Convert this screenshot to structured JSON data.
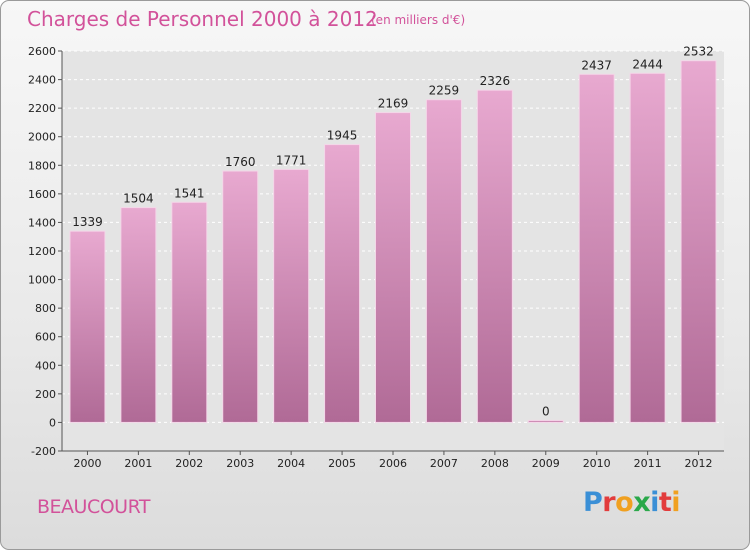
{
  "title": "Charges de Personnel 2000 à 2012",
  "subtitle": "(en milliers d'€)",
  "town": "BEAUCOURT",
  "logo": {
    "letters": [
      "P",
      "r",
      "o",
      "x",
      "i",
      "t",
      "i"
    ],
    "colors": [
      "#3a8fd6",
      "#e23c3c",
      "#f0a020",
      "#2aa84a",
      "#3a8fd6",
      "#e23c3c",
      "#f0a020"
    ]
  },
  "colors": {
    "bar_top": "#e8a9d0",
    "bar_bottom": "#b06a96",
    "text_accent": "#d2529a"
  },
  "chart_data": {
    "type": "bar",
    "categories": [
      "2000",
      "2001",
      "2002",
      "2003",
      "2004",
      "2005",
      "2006",
      "2007",
      "2008",
      "2009",
      "2010",
      "2011",
      "2012"
    ],
    "values": [
      1339,
      1504,
      1541,
      1760,
      1771,
      1945,
      2169,
      2259,
      2326,
      0,
      2437,
      2444,
      2532
    ],
    "data_labels": [
      "1339",
      "1504",
      "1541",
      "1760",
      "1771",
      "1945",
      "2169",
      "2259",
      "2326",
      "0",
      "2437",
      "2444",
      "2532"
    ],
    "title": "Charges de Personnel 2000 à 2012",
    "ylim": [
      -200,
      2600
    ],
    "yticks": [
      -200,
      0,
      200,
      400,
      600,
      800,
      1000,
      1200,
      1400,
      1600,
      1800,
      2000,
      2200,
      2400,
      2600
    ],
    "ytick_labels": [
      "-200",
      "0",
      "200",
      "400",
      "600",
      "800",
      "1000",
      "1200",
      "1400",
      "1600",
      "1800",
      "2000",
      "2200",
      "2400",
      "2600"
    ],
    "grid": true
  }
}
